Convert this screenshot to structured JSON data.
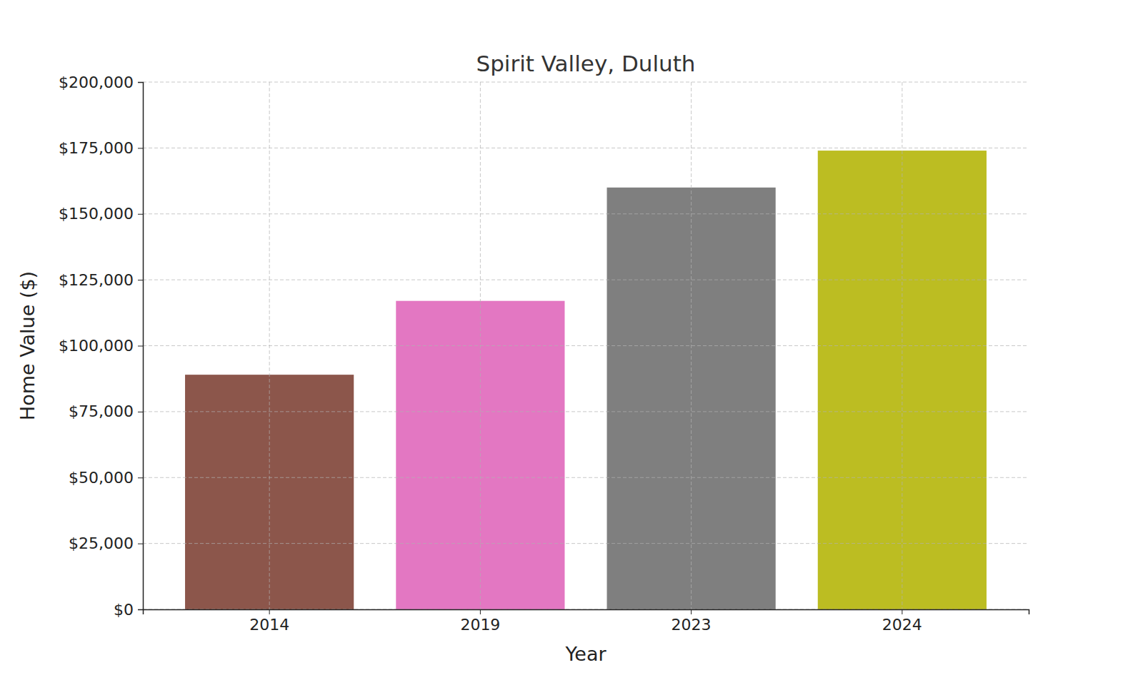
{
  "chart_data": {
    "type": "bar",
    "title": "Spirit Valley, Duluth",
    "x_label": "Year",
    "y_label": "Home Value ($)",
    "categories": [
      "2014",
      "2019",
      "2023",
      "2024"
    ],
    "values": [
      89000,
      117000,
      160000,
      174000
    ],
    "colors": [
      "#8c564b",
      "#e377c2",
      "#7f7f7f",
      "#bcbd22"
    ],
    "ylim": [
      0,
      200000
    ],
    "yticks": [
      {
        "value": 0,
        "label": "$0"
      },
      {
        "value": 25000,
        "label": "$25,000"
      },
      {
        "value": 50000,
        "label": "$50,000"
      },
      {
        "value": 75000,
        "label": "$75,000"
      },
      {
        "value": 100000,
        "label": "$100,000"
      },
      {
        "value": 125000,
        "label": "$125,000"
      },
      {
        "value": 150000,
        "label": "$150,000"
      },
      {
        "value": 175000,
        "label": "$175,000"
      },
      {
        "value": 200000,
        "label": "$200,000"
      }
    ],
    "grid": true
  }
}
